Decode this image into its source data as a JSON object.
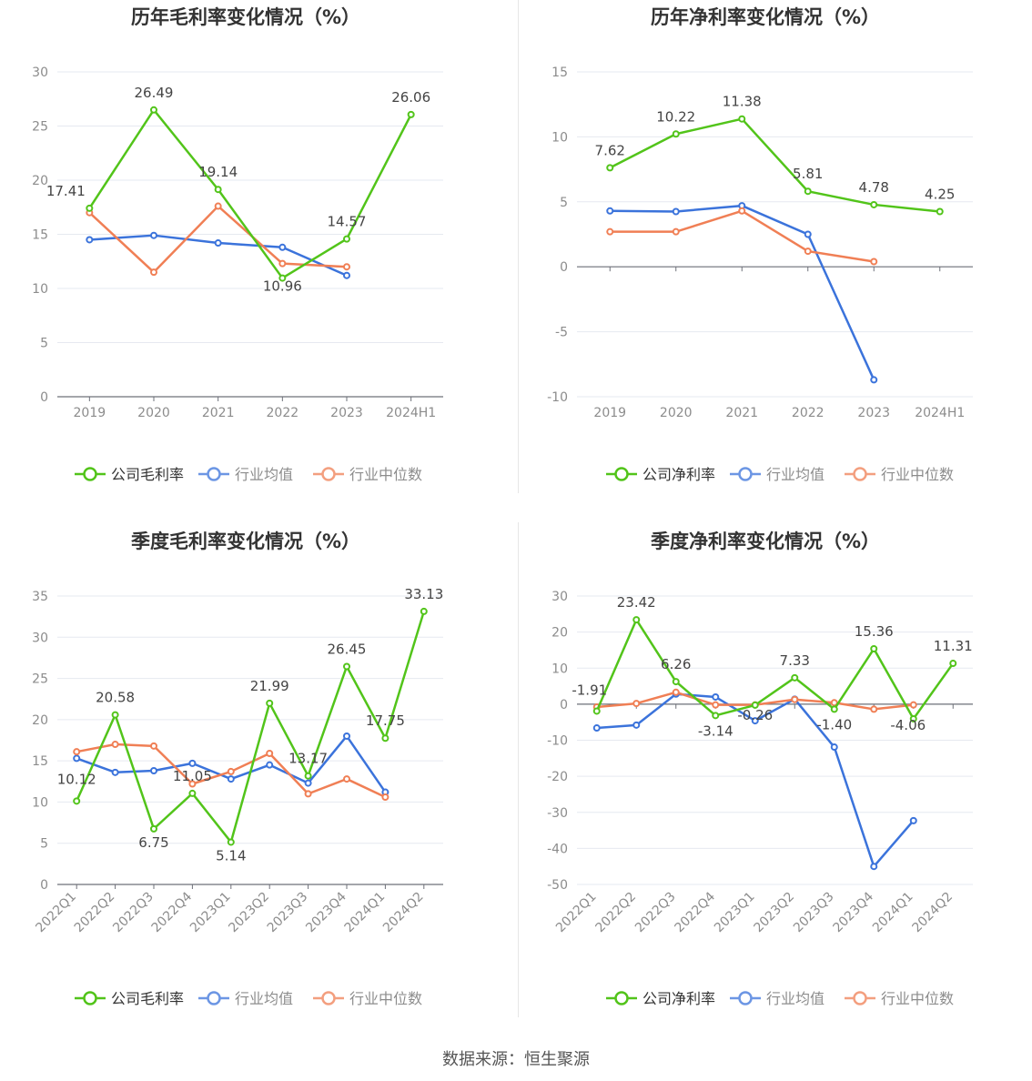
{
  "chart_data": [
    {
      "id": "annual-gross",
      "type": "line",
      "title": "历年毛利率变化情况（%）",
      "categories": [
        "2019",
        "2020",
        "2021",
        "2022",
        "2023",
        "2024H1"
      ],
      "ylim": [
        0,
        30
      ],
      "yticks": [
        "30",
        "25",
        "20",
        "15",
        "10",
        "5",
        "0"
      ],
      "rotate_x": false,
      "series": [
        {
          "name": "公司毛利率",
          "color": "#52c41a",
          "values": [
            17.41,
            26.49,
            19.14,
            10.96,
            14.57,
            26.06
          ],
          "labels": [
            "17.41",
            "26.49",
            "19.14",
            "10.96",
            "14.57",
            "26.06"
          ]
        },
        {
          "name": "行业均值",
          "color": "#3b73db",
          "values": [
            14.5,
            14.9,
            14.2,
            13.8,
            11.2,
            null
          ]
        },
        {
          "name": "行业中位数",
          "color": "#f07f55",
          "values": [
            17.0,
            11.5,
            17.6,
            12.3,
            12.0,
            null
          ]
        }
      ]
    },
    {
      "id": "annual-net",
      "type": "line",
      "title": "历年净利率变化情况（%）",
      "categories": [
        "2019",
        "2020",
        "2021",
        "2022",
        "2023",
        "2024H1"
      ],
      "ylim": [
        -10,
        15
      ],
      "yticks": [
        "15",
        "10",
        "5",
        "0",
        "-5",
        "-10"
      ],
      "rotate_x": false,
      "series": [
        {
          "name": "公司净利率",
          "color": "#52c41a",
          "values": [
            7.62,
            10.22,
            11.38,
            5.81,
            4.78,
            4.25
          ],
          "labels": [
            "7.62",
            "10.22",
            "11.38",
            "5.81",
            "4.78",
            "4.25"
          ]
        },
        {
          "name": "行业均值",
          "color": "#3b73db",
          "values": [
            4.3,
            4.25,
            4.7,
            2.5,
            -8.7,
            null
          ]
        },
        {
          "name": "行业中位数",
          "color": "#f07f55",
          "values": [
            2.7,
            2.7,
            4.3,
            1.2,
            0.4,
            null
          ]
        }
      ]
    },
    {
      "id": "quarterly-gross",
      "type": "line",
      "title": "季度毛利率变化情况（%）",
      "categories": [
        "2022Q1",
        "2022Q2",
        "2022Q3",
        "2022Q4",
        "2023Q1",
        "2023Q2",
        "2023Q3",
        "2023Q4",
        "2024Q1",
        "2024Q2"
      ],
      "ylim": [
        0,
        35
      ],
      "yticks": [
        "35",
        "30",
        "25",
        "20",
        "15",
        "10",
        "5",
        "0"
      ],
      "rotate_x": true,
      "series": [
        {
          "name": "公司毛利率",
          "color": "#52c41a",
          "values": [
            10.12,
            20.58,
            6.75,
            11.05,
            5.14,
            21.99,
            13.17,
            26.45,
            17.75,
            33.13
          ],
          "labels": [
            "10.12",
            "20.58",
            "6.75",
            "11.05",
            "5.14",
            "21.99",
            "13.17",
            "26.45",
            "17.75",
            "33.13"
          ]
        },
        {
          "name": "行业均值",
          "color": "#3b73db",
          "values": [
            15.3,
            13.6,
            13.8,
            14.7,
            12.8,
            14.5,
            12.3,
            18.0,
            11.2,
            null
          ]
        },
        {
          "name": "行业中位数",
          "color": "#f07f55",
          "values": [
            16.1,
            17.0,
            16.8,
            12.2,
            13.7,
            15.9,
            11.0,
            12.8,
            10.6,
            null
          ]
        }
      ]
    },
    {
      "id": "quarterly-net",
      "type": "line",
      "title": "季度净利率变化情况（%）",
      "categories": [
        "2022Q1",
        "2022Q2",
        "2022Q3",
        "2022Q4",
        "2023Q1",
        "2023Q2",
        "2023Q3",
        "2023Q4",
        "2024Q1",
        "2024Q2"
      ],
      "ylim": [
        -50,
        30
      ],
      "yticks": [
        "30",
        "20",
        "10",
        "0",
        "-10",
        "-20",
        "-30",
        "-40",
        "-50"
      ],
      "rotate_x": true,
      "series": [
        {
          "name": "公司净利率",
          "color": "#52c41a",
          "values": [
            -1.91,
            23.42,
            6.26,
            -3.14,
            -0.26,
            7.33,
            -1.4,
            15.36,
            -4.06,
            11.31
          ],
          "labels": [
            "-1.91",
            "23.42",
            "6.26",
            "-3.14",
            "-0.26",
            "7.33",
            "-1.40",
            "15.36",
            "-4.06",
            "11.31"
          ]
        },
        {
          "name": "行业均值",
          "color": "#3b73db",
          "values": [
            -6.6,
            -5.8,
            2.8,
            2.0,
            -4.6,
            1.4,
            -11.9,
            -45.0,
            -32.3,
            null
          ]
        },
        {
          "name": "行业中位数",
          "color": "#f07f55",
          "values": [
            -0.8,
            0.2,
            3.3,
            -0.2,
            -0.2,
            1.3,
            0.4,
            -1.4,
            -0.2,
            null
          ]
        }
      ]
    }
  ],
  "source": "数据来源：恒生聚源"
}
